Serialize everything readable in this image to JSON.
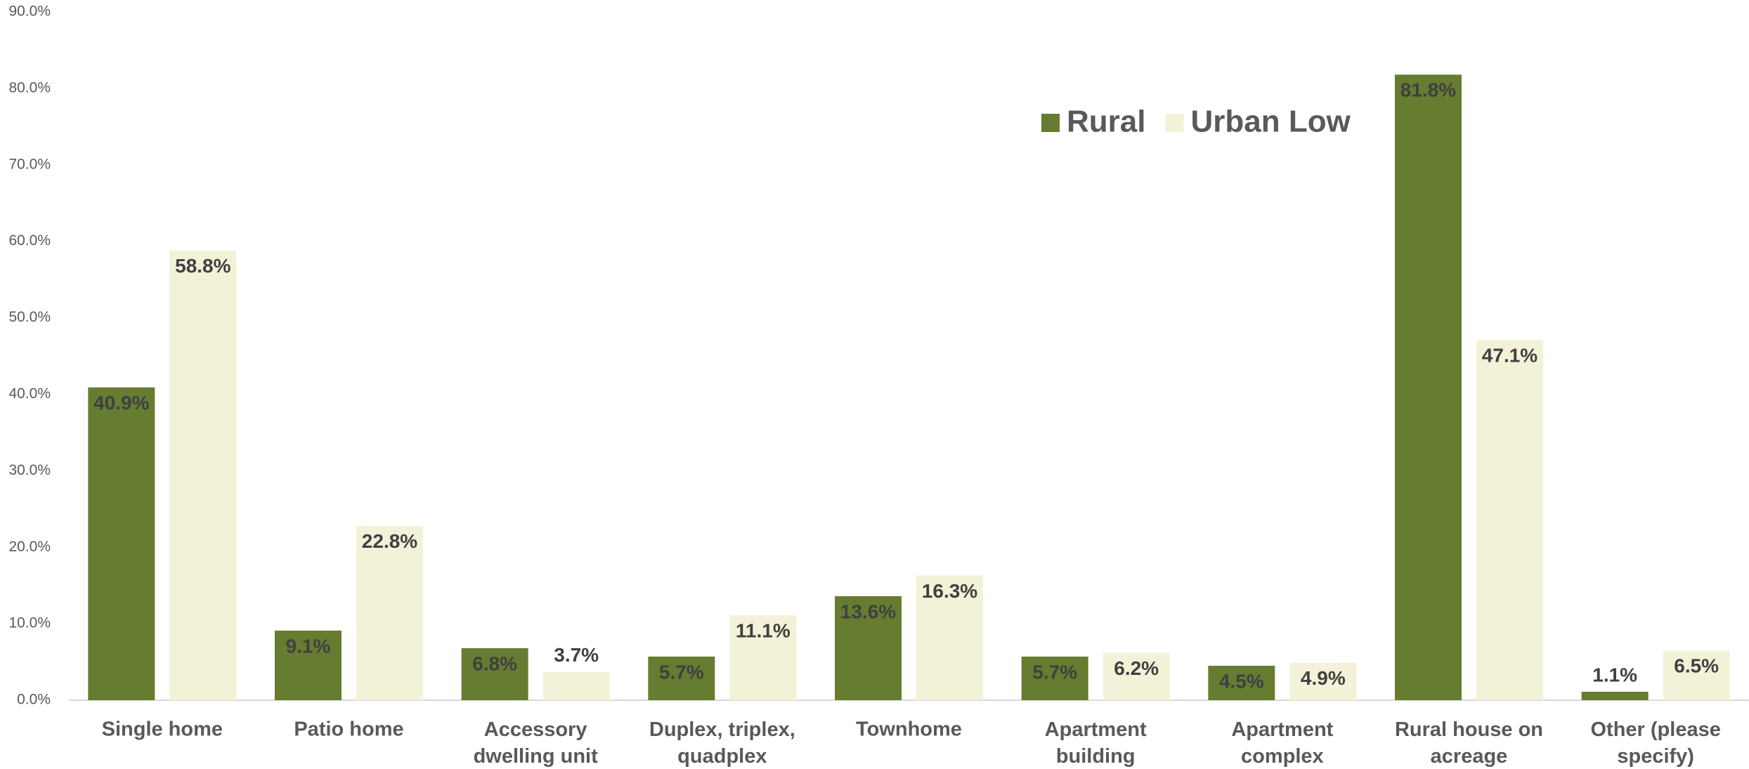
{
  "chart_data": {
    "type": "bar",
    "categories": [
      "Single home",
      "Patio home",
      "Accessory dwelling unit (ADU)",
      "Duplex, triplex, quadplex",
      "Townhome",
      "Apartment building",
      "Apartment complex",
      "Rural house on acreage",
      "Other (please specify)"
    ],
    "series": [
      {
        "name": "Rural",
        "color": "#667c31",
        "values": [
          40.9,
          9.1,
          6.8,
          5.7,
          13.6,
          5.7,
          4.5,
          81.8,
          1.1
        ],
        "value_labels": [
          "40.9%",
          "9.1%",
          "6.8%",
          "5.7%",
          "13.6%",
          "5.7%",
          "4.5%",
          "81.8%",
          "1.1%"
        ]
      },
      {
        "name": "Urban Low",
        "color": "#f3f2d9",
        "values": [
          58.8,
          22.8,
          3.7,
          11.1,
          16.3,
          6.2,
          4.9,
          47.1,
          6.5
        ],
        "value_labels": [
          "58.8%",
          "22.8%",
          "3.7%",
          "11.1%",
          "16.3%",
          "6.2%",
          "4.9%",
          "47.1%",
          "6.5%"
        ]
      }
    ],
    "ylim": [
      0,
      90
    ],
    "yticks": [
      {
        "value": 0,
        "label": "0.0%"
      },
      {
        "value": 10,
        "label": "10.0%"
      },
      {
        "value": 20,
        "label": "20.0%"
      },
      {
        "value": 30,
        "label": "30.0%"
      },
      {
        "value": 40,
        "label": "40.0%"
      },
      {
        "value": 50,
        "label": "50.0%"
      },
      {
        "value": 60,
        "label": "60.0%"
      },
      {
        "value": 70,
        "label": "70.0%"
      },
      {
        "value": 80,
        "label": "80.0%"
      },
      {
        "value": 90,
        "label": "90.0%"
      }
    ],
    "grid": false,
    "legend": "top-right"
  }
}
